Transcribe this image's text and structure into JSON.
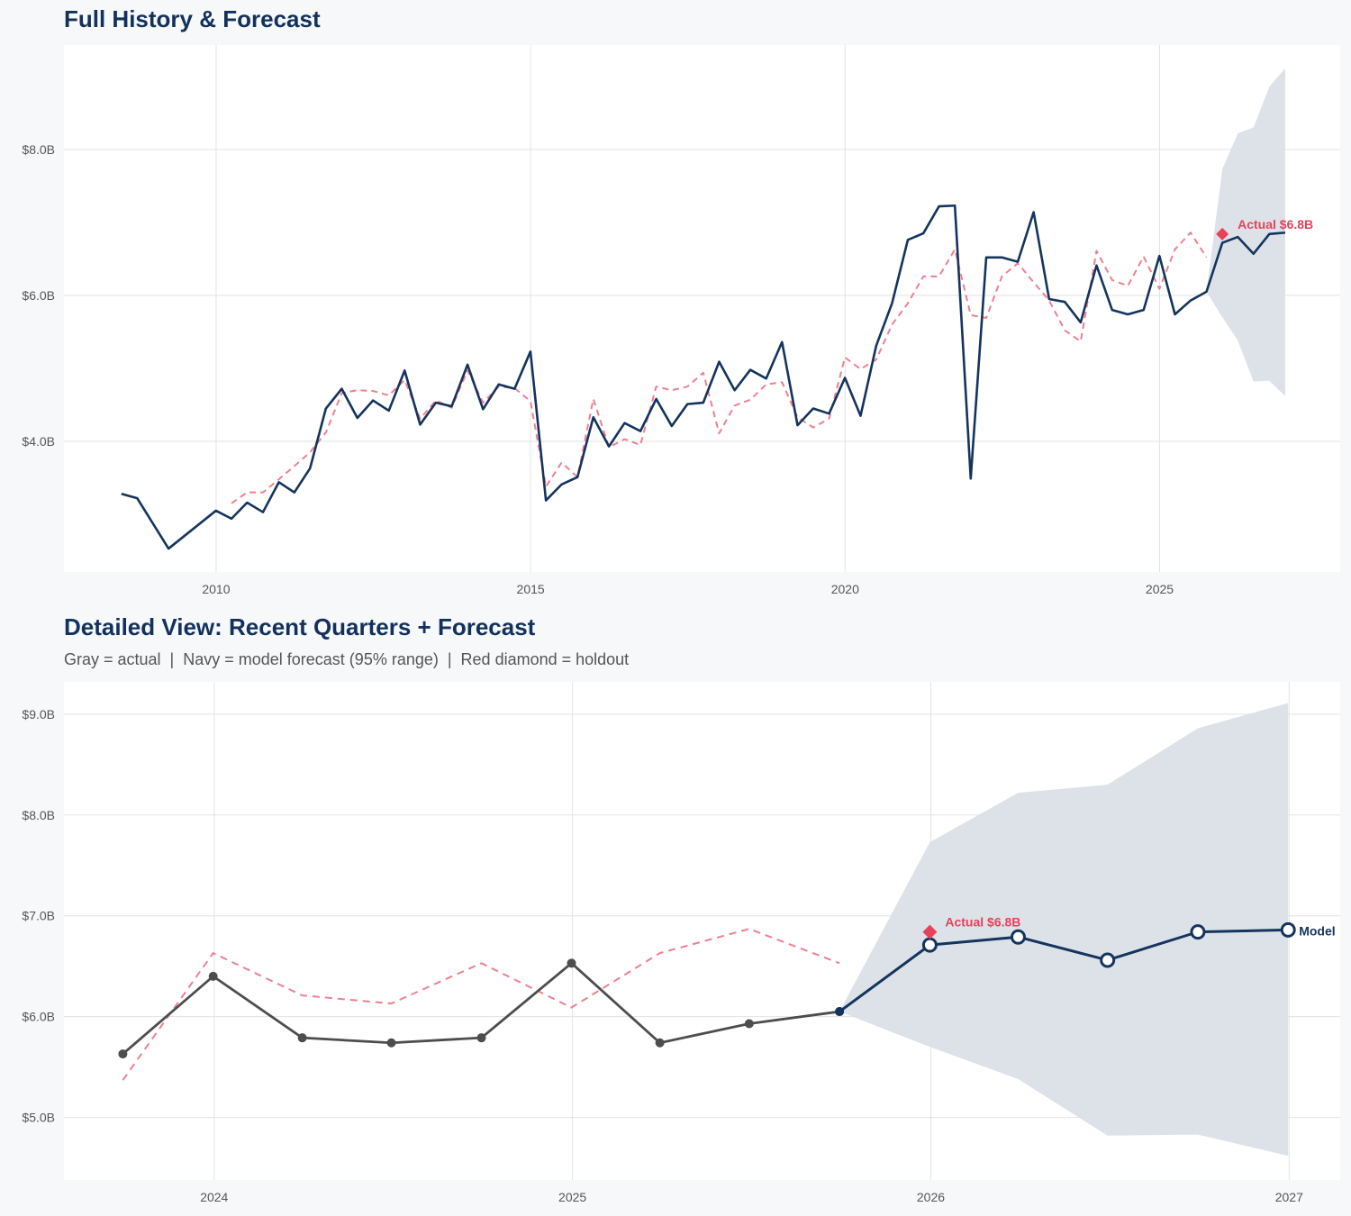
{
  "colors": {
    "navy": "#14345e",
    "red": "#e8415a",
    "red_dashed": "#f07f8f",
    "band": "#dbe0e7",
    "gray": "#4d4d4d",
    "grid": "#e3e3e3"
  },
  "chart_data": [
    {
      "type": "line",
      "title": "Full History & Forecast",
      "xlim": [
        "2007-08-01",
        "2027-11-15"
      ],
      "ylim": [
        2.21,
        9.43
      ],
      "grid": true,
      "x_ticks": [
        {
          "date": "2010-01-01",
          "label": "2010"
        },
        {
          "date": "2015-01-01",
          "label": "2015"
        },
        {
          "date": "2020-01-01",
          "label": "2020"
        },
        {
          "date": "2025-01-01",
          "label": "2025"
        }
      ],
      "y_ticks": [
        {
          "value": 4,
          "label": "$4.0B"
        },
        {
          "value": 6,
          "label": "$6.0B"
        },
        {
          "value": 8,
          "label": "$8.0B"
        }
      ],
      "series": [
        {
          "style": "navy-solid",
          "points": [
            [
              "2008-06-30",
              3.28
            ],
            [
              "2008-09-30",
              3.22
            ],
            [
              "2009-03-31",
              2.53
            ],
            [
              "2009-12-31",
              3.05
            ],
            [
              "2010-03-31",
              2.94
            ],
            [
              "2010-06-30",
              3.16
            ],
            [
              "2010-09-30",
              3.03
            ],
            [
              "2010-12-31",
              3.44
            ],
            [
              "2011-03-31",
              3.3
            ],
            [
              "2011-06-30",
              3.63
            ],
            [
              "2011-09-30",
              4.45
            ],
            [
              "2011-12-31",
              4.72
            ],
            [
              "2012-03-31",
              4.32
            ],
            [
              "2012-06-30",
              4.56
            ],
            [
              "2012-09-30",
              4.42
            ],
            [
              "2012-12-31",
              4.97
            ],
            [
              "2013-03-31",
              4.23
            ],
            [
              "2013-06-30",
              4.53
            ],
            [
              "2013-09-30",
              4.48
            ],
            [
              "2013-12-31",
              5.05
            ],
            [
              "2014-03-31",
              4.44
            ],
            [
              "2014-06-30",
              4.78
            ],
            [
              "2014-09-30",
              4.72
            ],
            [
              "2014-12-31",
              5.23
            ],
            [
              "2015-03-31",
              3.19
            ],
            [
              "2015-06-30",
              3.41
            ],
            [
              "2015-09-30",
              3.51
            ],
            [
              "2015-12-31",
              4.33
            ],
            [
              "2016-03-31",
              3.93
            ],
            [
              "2016-06-30",
              4.25
            ],
            [
              "2016-09-30",
              4.14
            ],
            [
              "2016-12-31",
              4.58
            ],
            [
              "2017-03-31",
              4.21
            ],
            [
              "2017-06-30",
              4.51
            ],
            [
              "2017-09-30",
              4.53
            ],
            [
              "2017-12-31",
              5.09
            ],
            [
              "2018-03-31",
              4.7
            ],
            [
              "2018-06-30",
              4.98
            ],
            [
              "2018-09-30",
              4.86
            ],
            [
              "2018-12-31",
              5.36
            ],
            [
              "2019-03-31",
              4.22
            ],
            [
              "2019-06-30",
              4.45
            ],
            [
              "2019-09-30",
              4.38
            ],
            [
              "2019-12-31",
              4.87
            ],
            [
              "2020-03-31",
              4.35
            ],
            [
              "2020-06-30",
              5.31
            ],
            [
              "2020-09-30",
              5.89
            ],
            [
              "2020-12-31",
              6.76
            ],
            [
              "2021-03-31",
              6.85
            ],
            [
              "2021-06-30",
              7.22
            ],
            [
              "2021-09-30",
              7.23
            ],
            [
              "2021-12-31",
              3.49
            ],
            [
              "2022-03-31",
              6.52
            ],
            [
              "2022-06-30",
              6.52
            ],
            [
              "2022-09-30",
              6.46
            ],
            [
              "2022-12-31",
              7.14
            ],
            [
              "2023-03-31",
              5.95
            ],
            [
              "2023-06-30",
              5.91
            ],
            [
              "2023-09-30",
              5.63
            ],
            [
              "2023-12-31",
              6.41
            ],
            [
              "2024-03-31",
              5.8
            ],
            [
              "2024-06-30",
              5.74
            ],
            [
              "2024-09-30",
              5.8
            ],
            [
              "2024-12-31",
              6.54
            ],
            [
              "2025-03-31",
              5.74
            ],
            [
              "2025-06-30",
              5.93
            ],
            [
              "2025-09-30",
              6.05
            ],
            [
              "2025-12-31",
              6.72
            ],
            [
              "2026-03-31",
              6.8
            ],
            [
              "2026-06-30",
              6.57
            ],
            [
              "2026-09-30",
              6.84
            ],
            [
              "2026-12-31",
              6.86
            ]
          ]
        },
        {
          "style": "red-dashed",
          "points": [
            [
              "2010-03-31",
              3.15
            ],
            [
              "2010-06-30",
              3.3
            ],
            [
              "2010-09-30",
              3.3
            ],
            [
              "2010-12-31",
              3.48
            ],
            [
              "2011-03-31",
              3.66
            ],
            [
              "2011-06-30",
              3.85
            ],
            [
              "2011-09-30",
              4.12
            ],
            [
              "2011-12-31",
              4.66
            ],
            [
              "2012-03-31",
              4.7
            ],
            [
              "2012-06-30",
              4.69
            ],
            [
              "2012-09-30",
              4.63
            ],
            [
              "2012-12-31",
              4.84
            ],
            [
              "2013-03-31",
              4.31
            ],
            [
              "2013-06-30",
              4.56
            ],
            [
              "2013-09-30",
              4.46
            ],
            [
              "2013-12-31",
              4.97
            ],
            [
              "2014-03-31",
              4.53
            ],
            [
              "2014-06-30",
              4.75
            ],
            [
              "2014-09-30",
              4.73
            ],
            [
              "2014-12-31",
              4.55
            ],
            [
              "2015-03-31",
              3.38
            ],
            [
              "2015-06-30",
              3.71
            ],
            [
              "2015-09-30",
              3.51
            ],
            [
              "2015-12-31",
              4.58
            ],
            [
              "2016-03-31",
              3.92
            ],
            [
              "2016-06-30",
              4.03
            ],
            [
              "2016-09-30",
              3.95
            ],
            [
              "2016-12-31",
              4.75
            ],
            [
              "2017-03-31",
              4.7
            ],
            [
              "2017-06-30",
              4.75
            ],
            [
              "2017-09-30",
              4.94
            ],
            [
              "2017-12-31",
              4.11
            ],
            [
              "2018-03-31",
              4.49
            ],
            [
              "2018-06-30",
              4.57
            ],
            [
              "2018-09-30",
              4.78
            ],
            [
              "2018-12-31",
              4.81
            ],
            [
              "2019-03-31",
              4.33
            ],
            [
              "2019-06-30",
              4.19
            ],
            [
              "2019-09-30",
              4.31
            ],
            [
              "2019-12-31",
              5.15
            ],
            [
              "2020-03-31",
              4.99
            ],
            [
              "2020-06-30",
              5.12
            ],
            [
              "2020-09-30",
              5.6
            ],
            [
              "2020-12-31",
              5.89
            ],
            [
              "2021-03-31",
              6.26
            ],
            [
              "2021-06-30",
              6.26
            ],
            [
              "2021-09-30",
              6.63
            ],
            [
              "2021-12-31",
              5.73
            ],
            [
              "2022-03-31",
              5.69
            ],
            [
              "2022-06-30",
              6.26
            ],
            [
              "2022-09-30",
              6.44
            ],
            [
              "2022-12-31",
              6.18
            ],
            [
              "2023-03-31",
              5.93
            ],
            [
              "2023-06-30",
              5.52
            ],
            [
              "2023-09-30",
              5.37
            ],
            [
              "2023-12-31",
              6.61
            ],
            [
              "2024-03-31",
              6.21
            ],
            [
              "2024-06-30",
              6.13
            ],
            [
              "2024-09-30",
              6.53
            ],
            [
              "2024-12-31",
              6.09
            ],
            [
              "2025-03-31",
              6.63
            ],
            [
              "2025-06-30",
              6.86
            ],
            [
              "2025-09-30",
              6.52
            ]
          ]
        }
      ],
      "band": [
        [
          "2025-09-30",
          6.05,
          6.05
        ],
        [
          "2025-12-31",
          5.7,
          7.73
        ],
        [
          "2026-03-31",
          5.38,
          8.22
        ],
        [
          "2026-06-30",
          4.82,
          8.3
        ],
        [
          "2026-09-30",
          4.83,
          8.86
        ],
        [
          "2026-12-31",
          4.62,
          9.11
        ]
      ],
      "holdout": {
        "date": "2025-12-31",
        "value": 6.84,
        "label": "Actual $6.8B"
      }
    },
    {
      "type": "line",
      "title": "Detailed View: Recent Quarters + Forecast",
      "subtitle": "Gray = actual  |  Navy = model forecast (95% range)  |  Red diamond = holdout",
      "xlim": [
        "2023-08-01",
        "2027-02-22"
      ],
      "ylim": [
        4.38,
        9.32
      ],
      "grid": true,
      "x_ticks": [
        {
          "date": "2024-01-01",
          "label": "2024"
        },
        {
          "date": "2025-01-01",
          "label": "2025"
        },
        {
          "date": "2026-01-01",
          "label": "2026"
        },
        {
          "date": "2027-01-01",
          "label": "2027"
        }
      ],
      "y_ticks": [
        {
          "value": 5,
          "label": "$5.0B"
        },
        {
          "value": 6,
          "label": "$6.0B"
        },
        {
          "value": 7,
          "label": "$7.0B"
        },
        {
          "value": 8,
          "label": "$8.0B"
        },
        {
          "value": 9,
          "label": "$9.0B"
        }
      ],
      "actual": [
        [
          "2023-09-30",
          5.63
        ],
        [
          "2023-12-31",
          6.4
        ],
        [
          "2024-03-31",
          5.79
        ],
        [
          "2024-06-30",
          5.74
        ],
        [
          "2024-09-30",
          5.79
        ],
        [
          "2024-12-31",
          6.53
        ],
        [
          "2025-03-31",
          5.74
        ],
        [
          "2025-06-30",
          5.93
        ],
        [
          "2025-09-30",
          6.05
        ]
      ],
      "forecast": {
        "label": "Model",
        "points": [
          [
            "2025-09-30",
            6.05
          ],
          [
            "2025-12-31",
            6.71
          ],
          [
            "2026-03-31",
            6.79
          ],
          [
            "2026-06-30",
            6.56
          ],
          [
            "2026-09-30",
            6.84
          ],
          [
            "2026-12-31",
            6.86
          ]
        ]
      },
      "red_dashed": [
        [
          "2023-09-30",
          5.37
        ],
        [
          "2023-12-31",
          6.63
        ],
        [
          "2024-03-31",
          6.21
        ],
        [
          "2024-06-30",
          6.13
        ],
        [
          "2024-09-30",
          6.53
        ],
        [
          "2024-12-31",
          6.09
        ],
        [
          "2025-03-31",
          6.63
        ],
        [
          "2025-06-30",
          6.87
        ],
        [
          "2025-09-30",
          6.53
        ]
      ],
      "band": [
        [
          "2025-09-30",
          6.05,
          6.05
        ],
        [
          "2025-12-31",
          5.7,
          7.73
        ],
        [
          "2026-03-31",
          5.38,
          8.22
        ],
        [
          "2026-06-30",
          4.82,
          8.3
        ],
        [
          "2026-09-30",
          4.83,
          8.86
        ],
        [
          "2026-12-31",
          4.62,
          9.11
        ]
      ],
      "holdout": {
        "date": "2025-12-31",
        "value": 6.84,
        "label": "Actual $6.8B"
      }
    }
  ]
}
